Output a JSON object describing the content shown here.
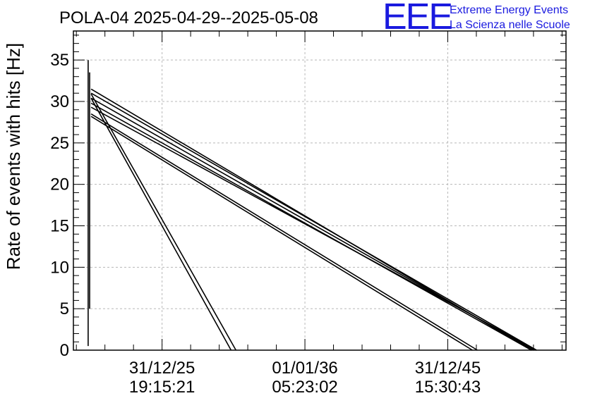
{
  "chart_data": {
    "type": "line",
    "title": "POLA-04 2025-04-29--2025-05-08",
    "ylabel": "Rate of events with hits [Hz]",
    "xlabel": "",
    "ylim": [
      0,
      38.5
    ],
    "yticks": [
      0,
      5,
      10,
      15,
      20,
      25,
      30,
      35
    ],
    "x_tick_labels": [
      {
        "date": "31/12/25",
        "time": "19:15:21"
      },
      {
        "date": "01/01/36",
        "time": "05:23:02"
      },
      {
        "date": "31/12/45",
        "time": "15:30:43"
      }
    ],
    "grid": true,
    "series": [
      {
        "points": [
          [
            0.03,
            0.5
          ],
          [
            0.03,
            35.0
          ]
        ]
      },
      {
        "points": [
          [
            0.033,
            5.0
          ],
          [
            0.033,
            33.5
          ]
        ]
      },
      {
        "points": [
          [
            0.036,
            31.5
          ],
          [
            0.93,
            0.0
          ]
        ]
      },
      {
        "points": [
          [
            0.036,
            31.0
          ],
          [
            0.94,
            0.0
          ]
        ]
      },
      {
        "points": [
          [
            0.036,
            30.4
          ],
          [
            0.935,
            0.0
          ]
        ]
      },
      {
        "points": [
          [
            0.036,
            29.8
          ],
          [
            0.93,
            0.0
          ]
        ]
      },
      {
        "points": [
          [
            0.036,
            29.3
          ],
          [
            0.94,
            0.0
          ]
        ]
      },
      {
        "points": [
          [
            0.036,
            28.5
          ],
          [
            0.82,
            0.0
          ]
        ]
      },
      {
        "points": [
          [
            0.036,
            28.2
          ],
          [
            0.81,
            0.0
          ]
        ]
      },
      {
        "points": [
          [
            0.036,
            30.9
          ],
          [
            0.33,
            0.0
          ]
        ]
      },
      {
        "points": [
          [
            0.036,
            30.4
          ],
          [
            0.32,
            0.0
          ]
        ]
      }
    ]
  },
  "logo": {
    "mark": "EEE",
    "line1": "Extreme Energy Events",
    "line2": "La Scienza nelle Scuole",
    "color": "#1a1adf"
  }
}
